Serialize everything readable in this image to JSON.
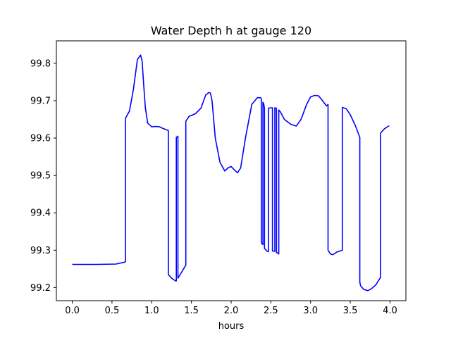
{
  "chart_data": {
    "type": "line",
    "title": "Water Depth h at gauge 120",
    "xlabel": "hours",
    "ylabel": "",
    "xlim": [
      -0.2,
      4.2
    ],
    "ylim": [
      99.165,
      99.86
    ],
    "xticks": [
      0.0,
      0.5,
      1.0,
      1.5,
      2.0,
      2.5,
      3.0,
      3.5,
      4.0
    ],
    "xtick_labels": [
      "0.0",
      "0.5",
      "1.0",
      "1.5",
      "2.0",
      "2.5",
      "3.0",
      "3.5",
      "4.0"
    ],
    "yticks": [
      99.2,
      99.3,
      99.4,
      99.5,
      99.6,
      99.7,
      99.8
    ],
    "ytick_labels": [
      "99.2",
      "99.3",
      "99.4",
      "99.5",
      "99.6",
      "99.7",
      "99.8"
    ],
    "grid": false,
    "series": [
      {
        "color": "#0000ff",
        "x": [
          0.0,
          0.3,
          0.55,
          0.66,
          0.67,
          0.67,
          0.72,
          0.77,
          0.82,
          0.86,
          0.88,
          0.9,
          0.92,
          0.95,
          1.0,
          1.05,
          1.1,
          1.15,
          1.21,
          1.21,
          1.25,
          1.3,
          1.31,
          1.31,
          1.33,
          1.33,
          1.43,
          1.43,
          1.47,
          1.55,
          1.62,
          1.68,
          1.72,
          1.74,
          1.76,
          1.8,
          1.86,
          1.92,
          1.96,
          2.0,
          2.04,
          2.08,
          2.12,
          2.18,
          2.26,
          2.33,
          2.37,
          2.38,
          2.38,
          2.4,
          2.4,
          2.41,
          2.42,
          2.42,
          2.45,
          2.46,
          2.47,
          2.47,
          2.51,
          2.52,
          2.52,
          2.55,
          2.55,
          2.57,
          2.57,
          2.59,
          2.6,
          2.6,
          2.62,
          2.67,
          2.75,
          2.82,
          2.88,
          2.95,
          3.0,
          3.05,
          3.1,
          3.15,
          3.2,
          3.22,
          3.22,
          3.25,
          3.28,
          3.33,
          3.4,
          3.4,
          3.45,
          3.5,
          3.56,
          3.62,
          3.62,
          3.63,
          3.67,
          3.72,
          3.76,
          3.82,
          3.88,
          3.88,
          3.93,
          3.99
        ],
        "y": [
          99.262,
          99.262,
          99.263,
          99.268,
          99.27,
          99.653,
          99.672,
          99.73,
          99.81,
          99.822,
          99.805,
          99.74,
          99.68,
          99.64,
          99.63,
          99.631,
          99.63,
          99.625,
          99.62,
          99.235,
          99.225,
          99.218,
          99.218,
          99.602,
          99.605,
          99.225,
          99.26,
          99.645,
          99.658,
          99.665,
          99.68,
          99.715,
          99.722,
          99.72,
          99.7,
          99.6,
          99.535,
          99.512,
          99.52,
          99.524,
          99.515,
          99.507,
          99.52,
          99.6,
          99.69,
          99.708,
          99.708,
          99.705,
          99.32,
          99.315,
          99.696,
          99.692,
          99.68,
          99.305,
          99.298,
          99.297,
          99.296,
          99.68,
          99.681,
          99.681,
          99.298,
          99.297,
          99.681,
          99.68,
          99.294,
          99.292,
          99.29,
          99.675,
          99.67,
          99.65,
          99.637,
          99.632,
          99.65,
          99.69,
          99.71,
          99.714,
          99.713,
          99.7,
          99.686,
          99.69,
          99.3,
          99.29,
          99.288,
          99.295,
          99.3,
          99.682,
          99.678,
          99.662,
          99.635,
          99.602,
          99.215,
          99.205,
          99.195,
          99.192,
          99.196,
          99.207,
          99.227,
          99.613,
          99.625,
          99.633
        ]
      }
    ]
  }
}
